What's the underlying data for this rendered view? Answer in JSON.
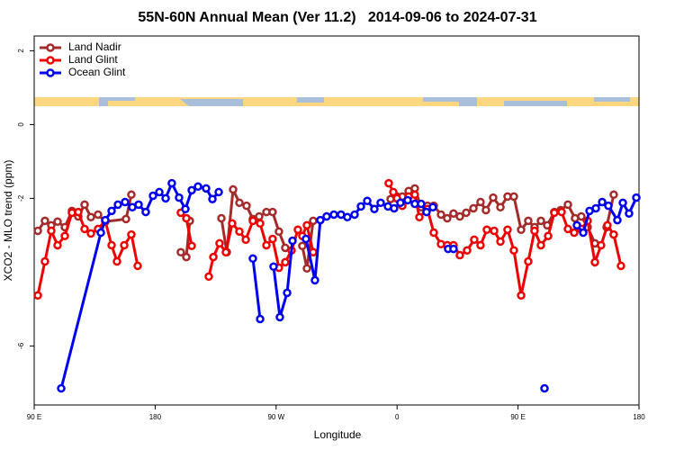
{
  "chart_data": {
    "type": "line",
    "title": "55N-60N Annual Mean (Ver 11.2)   2014-09-06 to 2024-07-31",
    "x_label": "Longitude",
    "y_label": "XCO2 - MLO trend (ppm)",
    "xlim": [
      90,
      540
    ],
    "ylim": [
      -7.6,
      2.4
    ],
    "xticks": [
      {
        "value": 90,
        "label": "90 E"
      },
      {
        "value": 180,
        "label": "180"
      },
      {
        "value": 270,
        "label": "90 W"
      },
      {
        "value": 360,
        "label": "0"
      },
      {
        "value": 450,
        "label": "90 E"
      },
      {
        "value": 540,
        "label": "180"
      }
    ],
    "yticks": [
      2,
      0,
      -2,
      -6
    ],
    "legend": "top-left",
    "series": [
      {
        "name": "Land Nadir",
        "color": "#a52a2a",
        "x": [
          92.7,
          98.0,
          102.7,
          107.4,
          112.8,
          118.1,
          122.8,
          127.5,
          132.2,
          137.5,
          142.9,
          158.3,
          162.3,
          null,
          199.1,
          203.2,
          205.8,
          null,
          229.3,
          233.3,
          238.0,
          242.7,
          248.0,
          252.7,
          257.4,
          262.8,
          267.4,
          272.1,
          276.8,
          null,
          289.5,
          292.9,
          297.6,
          null,
          355.2,
          359.9,
          363.9,
          368.6,
          373.2,
          377.9,
          382.6,
          387.3,
          392.7,
          397.3,
          402.0,
          406.7,
          411.4,
          416.8,
          422.1,
          426.1,
          431.5,
          436.9,
          442.2,
          446.9,
          452.3,
          457.6,
          462.3,
          467.0,
          471.7,
          477.0,
          481.7,
          487.1,
          492.4,
          497.1,
          501.8,
          507.2,
          null,
          515.9,
          521.2
        ],
        "values": [
          -2.88,
          -2.61,
          -2.73,
          -2.63,
          -2.78,
          -2.34,
          -2.49,
          -2.17,
          -2.51,
          -2.44,
          -2.63,
          -2.56,
          -1.9,
          null,
          -3.46,
          -3.59,
          -2.61,
          null,
          -2.54,
          -3.46,
          -1.76,
          -2.12,
          -2.2,
          -2.56,
          -2.49,
          -2.37,
          -2.37,
          -2.9,
          -3.34,
          null,
          -3.29,
          -3.9,
          -2.61,
          null,
          -2.02,
          -1.95,
          -1.95,
          -1.8,
          -1.73,
          -2.24,
          -2.2,
          -2.2,
          -2.44,
          -2.54,
          -2.41,
          -2.49,
          -2.39,
          -2.27,
          -2.1,
          -2.32,
          -1.98,
          -2.24,
          -1.95,
          -1.95,
          -2.85,
          -2.61,
          -2.78,
          -2.61,
          -2.73,
          -2.37,
          -2.32,
          -2.17,
          -2.54,
          -2.49,
          -2.78,
          -3.22,
          null,
          -2.78,
          -1.9
        ]
      },
      {
        "name": "Land Glint",
        "color": "#ee0000",
        "x": [
          92.7,
          98.0,
          102.7,
          107.4,
          112.8,
          118.1,
          122.8,
          127.5,
          132.2,
          137.5,
          142.9,
          147.6,
          151.6,
          157.0,
          162.3,
          167.0,
          null,
          199.1,
          203.2,
          207.2,
          null,
          219.9,
          223.3,
          227.9,
          232.6,
          237.3,
          242.7,
          247.4,
          252.7,
          258.1,
          262.8,
          267.4,
          272.1,
          276.8,
          281.5,
          286.2,
          289.5,
          292.9,
          297.6,
          null,
          353.8,
          357.2,
          359.9,
          363.9,
          368.6,
          373.2,
          376.6,
          382.6,
          387.3,
          392.7,
          397.3,
          402.0,
          406.7,
          412.1,
          417.4,
          422.1,
          426.8,
          432.2,
          436.9,
          442.2,
          446.9,
          452.3,
          457.6,
          462.3,
          467.0,
          472.4,
          477.0,
          482.4,
          487.1,
          491.8,
          497.1,
          501.8,
          507.2,
          511.8,
          516.5,
          521.2,
          526.6
        ],
        "values": [
          -4.63,
          -3.71,
          -2.88,
          -3.27,
          -3.02,
          -2.39,
          -2.37,
          -2.83,
          -2.95,
          -2.83,
          -2.61,
          -3.27,
          -3.71,
          -3.27,
          -2.98,
          -3.83,
          null,
          -2.39,
          -2.54,
          -3.29,
          null,
          -4.12,
          -3.59,
          -3.22,
          -3.46,
          -2.68,
          -2.9,
          -3.12,
          -2.61,
          -2.68,
          -3.27,
          -3.1,
          -3.88,
          -3.73,
          -3.41,
          -2.85,
          -3.02,
          -2.73,
          -3.46,
          null,
          -1.59,
          -1.83,
          -2.0,
          -2.2,
          -1.95,
          -1.9,
          -2.51,
          -2.29,
          -2.93,
          -3.24,
          -3.27,
          -3.27,
          -3.54,
          -3.41,
          -3.12,
          -3.27,
          -2.85,
          -2.88,
          -3.17,
          -2.85,
          -3.41,
          -4.63,
          -3.71,
          -2.88,
          -3.27,
          -3.02,
          -2.39,
          -2.37,
          -2.83,
          -2.93,
          -2.83,
          -2.61,
          -3.73,
          -3.27,
          -2.73,
          -2.98,
          -3.83
        ]
      },
      {
        "name": "Ocean Glint",
        "color": "#0000ee",
        "x": [
          110.1,
          139.6,
          142.9,
          147.6,
          152.3,
          157.6,
          163.0,
          167.7,
          173.0,
          178.4,
          183.1,
          187.8,
          192.4,
          197.8,
          202.5,
          207.2,
          211.9,
          217.9,
          222.6,
          227.3,
          null,
          252.7,
          258.1,
          null,
          268.1,
          272.8,
          278.2,
          282.2,
          null,
          292.2,
          298.9,
          302.9,
          307.6,
          313.0,
          318.3,
          323.0,
          328.4,
          333.1,
          337.8,
          343.1,
          347.8,
          353.2,
          357.8,
          362.5,
          367.9,
          373.2,
          377.9,
          381.9,
          386.6,
          null,
          398.0,
          402.0,
          null,
          469.7,
          null,
          493.8,
          498.5,
          503.2,
          507.9,
          512.6,
          517.2,
          523.9,
          528.0,
          532.6,
          538.0
        ],
        "values": [
          -7.15,
          -2.93,
          -2.59,
          -2.34,
          -2.17,
          -2.1,
          -2.24,
          -2.17,
          -2.37,
          -1.93,
          -1.83,
          -2.0,
          -1.59,
          -1.98,
          -2.29,
          -1.78,
          -1.68,
          -1.73,
          -2.02,
          -1.83,
          null,
          -3.63,
          -5.27,
          null,
          -3.85,
          -5.22,
          -4.56,
          -3.15,
          null,
          -3.1,
          -4.22,
          -2.59,
          -2.49,
          -2.44,
          -2.44,
          -2.51,
          -2.44,
          -2.22,
          -2.07,
          -2.29,
          -2.12,
          -2.22,
          -2.27,
          -2.12,
          -2.05,
          -2.15,
          -2.15,
          -2.37,
          -2.24,
          null,
          -3.37,
          -3.37,
          null,
          -7.15,
          null,
          -2.73,
          -2.93,
          -2.34,
          -2.27,
          -2.1,
          -2.2,
          -2.59,
          -2.12,
          -2.41,
          -1.98
        ]
      }
    ]
  }
}
